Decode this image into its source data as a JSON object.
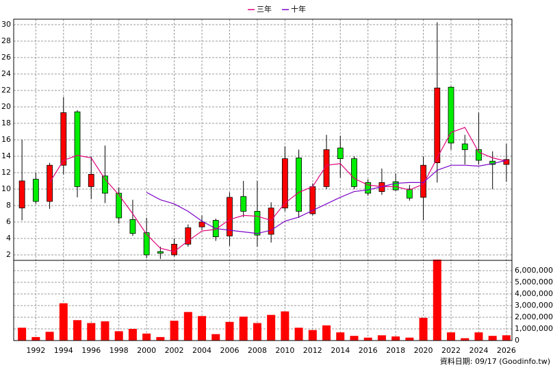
{
  "chart_data": [
    {
      "type": "candlestick",
      "x": [
        1991,
        1992,
        1993,
        1994,
        1995,
        1996,
        1997,
        1998,
        1999,
        2000,
        2001,
        2002,
        2003,
        2004,
        2005,
        2006,
        2007,
        2008,
        2009,
        2010,
        2011,
        2012,
        2013,
        2014,
        2015,
        2016,
        2017,
        2018,
        2019,
        2020,
        2021,
        2022,
        2023,
        2024,
        2025,
        2026
      ],
      "open": [
        7.7,
        11.2,
        8.5,
        12.9,
        19.4,
        10.3,
        11.6,
        9.5,
        6.3,
        4.7,
        2.4,
        2.0,
        3.3,
        5.4,
        6.2,
        4.3,
        9.1,
        7.3,
        4.5,
        7.7,
        13.8,
        7.0,
        10.3,
        15.0,
        13.7,
        10.8,
        9.7,
        10.9,
        10.0,
        9.0,
        13.2,
        22.4,
        15.5,
        14.8,
        13.4,
        13.0
      ],
      "high": [
        16,
        12,
        13.2,
        21.2,
        19.6,
        14,
        15.3,
        10.2,
        8.7,
        6.5,
        3,
        4,
        5.7,
        6.8,
        6.4,
        9.6,
        11,
        11,
        8.4,
        15.2,
        14.8,
        10.7,
        16.6,
        16.5,
        14,
        11.2,
        12.5,
        11.9,
        10.5,
        14,
        30.3,
        22.5,
        16.6,
        19.3,
        14.6,
        15.5
      ],
      "low": [
        6.2,
        8.2,
        7.6,
        11.8,
        9,
        8.8,
        8.3,
        5.8,
        4.3,
        1.6,
        1.5,
        1.8,
        3,
        5,
        3.7,
        3.1,
        6.6,
        3,
        3.5,
        7.3,
        6.5,
        6.8,
        10,
        11.4,
        10,
        9.2,
        9.3,
        9.8,
        8.6,
        6.2,
        10.8,
        14.8,
        13,
        13,
        10,
        10.9
      ],
      "close": [
        11,
        8.5,
        12.9,
        19.3,
        10.3,
        11.8,
        9.5,
        6.5,
        4.6,
        2,
        2.2,
        3.3,
        5.3,
        6,
        4.2,
        9,
        7.3,
        4.4,
        7.7,
        13.7,
        7.3,
        10.3,
        14.8,
        13.7,
        10.3,
        9.5,
        10.8,
        9.9,
        8.9,
        12.9,
        22.3,
        15.6,
        14.8,
        13.5,
        13.0,
        13.6
      ],
      "up_color": "#ff0000",
      "down_color": "#00ee00",
      "series": [
        {
          "name": "三年",
          "color": "#e0007a",
          "values": [
            null,
            null,
            10.8,
            13.5,
            14.1,
            13.8,
            11.2,
            9.3,
            7,
            4.5,
            2.8,
            2.4,
            3.7,
            4.9,
            5.1,
            6.3,
            6.8,
            6.7,
            6.2,
            8.3,
            9.6,
            10.3,
            12.9,
            13.1,
            11.3,
            10.5,
            10.3,
            10.3,
            9.9,
            10.6,
            13.8,
            16.9,
            17.5,
            14.5,
            13.8,
            13.4
          ]
        },
        {
          "name": "十年",
          "color": "#7a00c8",
          "values": [
            null,
            null,
            null,
            null,
            null,
            null,
            null,
            null,
            null,
            9.6,
            8.7,
            8.2,
            7.3,
            6.1,
            5.2,
            5,
            4.8,
            4.6,
            5,
            6.1,
            6.6,
            7.4,
            8.2,
            9,
            9.7,
            9.9,
            10.3,
            10.7,
            10.8,
            10.8,
            12.3,
            12.9,
            12.9,
            12.8,
            13.1,
            13.5
          ]
        }
      ],
      "xlim": [
        1990.4,
        2026.4
      ],
      "ylim": [
        1.33,
        30.67
      ],
      "yticks": [
        2,
        4,
        6,
        8,
        10,
        12,
        14,
        16,
        18,
        20,
        22,
        24,
        26,
        28,
        30
      ],
      "grid": true,
      "legend": "top"
    },
    {
      "type": "bar",
      "x": [
        1991,
        1992,
        1993,
        1994,
        1995,
        1996,
        1997,
        1998,
        1999,
        2000,
        2001,
        2002,
        2003,
        2004,
        2005,
        2006,
        2007,
        2008,
        2009,
        2010,
        2011,
        2012,
        2013,
        2014,
        2015,
        2016,
        2017,
        2018,
        2019,
        2020,
        2021,
        2022,
        2023,
        2024,
        2025,
        2026
      ],
      "values": [
        1100000,
        300000,
        750000,
        3200000,
        1750000,
        1500000,
        1650000,
        800000,
        1000000,
        600000,
        300000,
        1700000,
        2450000,
        2100000,
        550000,
        1600000,
        2050000,
        1500000,
        2200000,
        2500000,
        1100000,
        900000,
        1300000,
        700000,
        400000,
        250000,
        450000,
        350000,
        250000,
        1950000,
        6950000,
        700000,
        200000,
        700000,
        400000,
        450000
      ],
      "color": "#ff0000",
      "xlim": [
        1990.4,
        2026.4
      ],
      "xticks": [
        1992,
        1994,
        1996,
        1998,
        2000,
        2002,
        2004,
        2006,
        2008,
        2010,
        2012,
        2014,
        2016,
        2018,
        2020,
        2022,
        2024,
        2026
      ],
      "ylim": [
        0,
        7000000
      ],
      "yticks": [
        0,
        {
          "value": 1000000,
          "label": "1,000,000"
        },
        {
          "value": 2000000,
          "label": "2,000,000"
        },
        {
          "value": 3000000,
          "label": "3,000,000"
        },
        {
          "value": 4000000,
          "label": "4,000,000"
        },
        {
          "value": 5000000,
          "label": "5,000,000"
        },
        {
          "value": 6000000,
          "label": "6,000,000"
        }
      ],
      "grid": true,
      "note": "資料日期: 09/17 (Goodinfo.tw)"
    }
  ]
}
